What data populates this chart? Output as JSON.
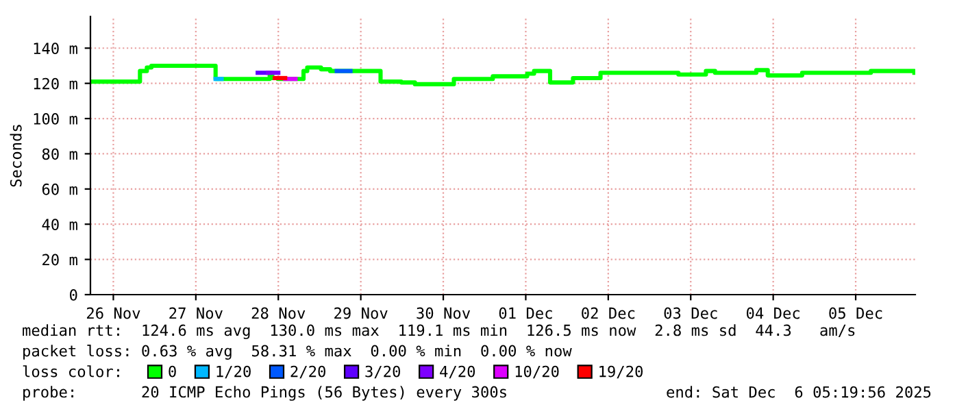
{
  "chart_data": {
    "type": "step",
    "ylabel": "Seconds",
    "xlim": [
      "2025-11-26T05:20",
      "2025-12-06T05:20"
    ],
    "xticks": [
      {
        "value": "2025-11-26T12:00",
        "label": "26 Nov"
      },
      {
        "value": "2025-11-27T12:00",
        "label": "27 Nov"
      },
      {
        "value": "2025-11-28T12:00",
        "label": "28 Nov"
      },
      {
        "value": "2025-11-29T12:00",
        "label": "29 Nov"
      },
      {
        "value": "2025-11-30T12:00",
        "label": "30 Nov"
      },
      {
        "value": "2025-12-01T12:00",
        "label": "01 Dec"
      },
      {
        "value": "2025-12-02T12:00",
        "label": "02 Dec"
      },
      {
        "value": "2025-12-03T12:00",
        "label": "03 Dec"
      },
      {
        "value": "2025-12-04T12:00",
        "label": "04 Dec"
      },
      {
        "value": "2025-12-05T12:00",
        "label": "05 Dec"
      }
    ],
    "ylim": [
      0,
      158
    ],
    "yticks": [
      0,
      {
        "value": 20,
        "label": "20 m"
      },
      {
        "value": 40,
        "label": "40 m"
      },
      {
        "value": 60,
        "label": "60 m"
      },
      {
        "value": 80,
        "label": "80 m"
      },
      {
        "value": 100,
        "label": "100 m"
      },
      {
        "value": 120,
        "label": "120 m"
      },
      {
        "value": 140,
        "label": "140 m"
      }
    ],
    "grid": true,
    "legend": "bottom",
    "series": [
      {
        "name": "0",
        "color": "#00ff00",
        "x": [
          "2025-11-26T05:20",
          "2025-11-26T19:45",
          "2025-11-26T21:45",
          "2025-11-26T23:05",
          "2025-11-27T17:45",
          "2025-11-28T09:30",
          "2025-11-28T10:15",
          "2025-11-28T11:50",
          "2025-11-28T19:20",
          "2025-11-28T20:25",
          "2025-11-29T00:25",
          "2025-11-29T03:05",
          "2025-11-29T17:45",
          "2025-11-29T23:45",
          "2025-11-30T03:45",
          "2025-11-30T15:05",
          "2025-12-01T02:25",
          "2025-12-01T12:25",
          "2025-12-01T14:25",
          "2025-12-01T19:05",
          "2025-12-02T01:45",
          "2025-12-02T09:45",
          "2025-12-03T08:25",
          "2025-12-03T16:25",
          "2025-12-03T19:05",
          "2025-12-04T07:05",
          "2025-12-04T10:25",
          "2025-12-04T20:25",
          "2025-12-05T16:25",
          "2025-12-06T05:05"
        ],
        "values": [
          121,
          127,
          129,
          130,
          122.5,
          126,
          123,
          122.5,
          127,
          129,
          128,
          127,
          121,
          120.5,
          119.5,
          122.5,
          124,
          125.5,
          127,
          120.5,
          123,
          126,
          125,
          127,
          126,
          127.5,
          124.5,
          126,
          127,
          126
        ]
      },
      {
        "name": "1/20",
        "color": "#00b8ff",
        "x": [
          "2025-11-27T17:45",
          "2025-11-27T19:30"
        ],
        "values": [
          122.5,
          122.5
        ]
      },
      {
        "name": "2/20",
        "color": "#0059ff",
        "x": [
          "2025-11-29T05:00",
          "2025-11-29T09:00"
        ],
        "values": [
          127,
          127
        ]
      },
      {
        "name": "3/20",
        "color": "#5e00ff",
        "x": [
          "2025-11-28T06:00",
          "2025-11-28T09:00"
        ],
        "values": [
          126,
          126
        ]
      },
      {
        "name": "4/20",
        "color": "#7e00ff",
        "x": [
          "2025-11-28T09:00",
          "2025-11-28T12:00"
        ],
        "values": [
          126,
          126
        ]
      },
      {
        "name": "10/20",
        "color": "#dd00ff",
        "x": [
          "2025-11-28T14:00",
          "2025-11-28T17:00"
        ],
        "values": [
          122.5,
          122.5
        ]
      },
      {
        "name": "19/20",
        "color": "#ff0000",
        "x": [
          "2025-11-28T11:00",
          "2025-11-28T14:00"
        ],
        "values": [
          123,
          123
        ]
      }
    ],
    "annotations": [
      "median rtt:  124.6 ms avg  130.0 ms max  119.1 ms min  126.5 ms now  2.8 ms sd  44.3   am/s",
      "packet loss: 0.63 % avg  58.31 % max  0.00 % min  0.00 % now",
      "loss color:",
      "probe:       20 ICMP Echo Pings (56 Bytes) every 300s",
      "end: Sat Dec  6 05:19:56 2025"
    ]
  }
}
